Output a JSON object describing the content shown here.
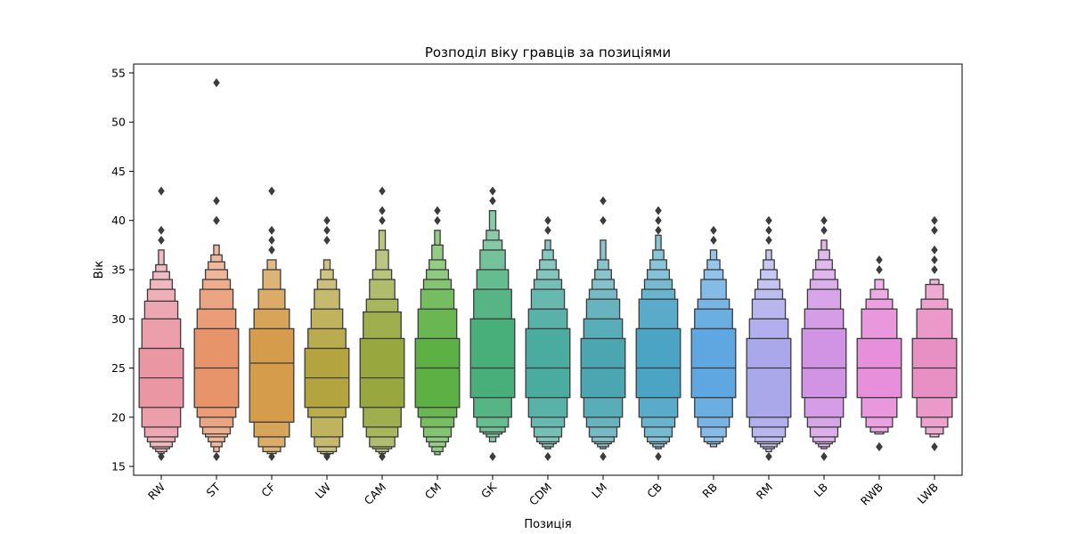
{
  "chart_data": {
    "type": "boxen",
    "title": "Розподіл віку гравців за позиціями",
    "xlabel": "Позиція",
    "ylabel": "Вік",
    "ylim": [
      14.1,
      55.9
    ],
    "yticks": [
      15,
      20,
      25,
      30,
      35,
      40,
      45,
      50,
      55
    ],
    "grid": false,
    "categories": [
      "RW",
      "ST",
      "CF",
      "LW",
      "CAM",
      "CM",
      "GK",
      "CDM",
      "LM",
      "CB",
      "RB",
      "RM",
      "LB",
      "RWB",
      "LWB"
    ],
    "colors": [
      "#ea96a3",
      "#e8946a",
      "#d49c4b",
      "#b3a43f",
      "#98a83e",
      "#5cb044",
      "#48af7a",
      "#4aab9f",
      "#4ba6b2",
      "#4ba4c4",
      "#5ea7e0",
      "#aaa8eb",
      "#d194e4",
      "#e78fdb",
      "#e890c4"
    ],
    "series": [
      {
        "median": 24,
        "boxes": [
          [
            21,
            27
          ],
          [
            19,
            30
          ],
          [
            18,
            31.8
          ],
          [
            17.5,
            33
          ],
          [
            17,
            34
          ],
          [
            16.8,
            34.8
          ],
          [
            16.5,
            35.5
          ],
          [
            16.3,
            37
          ]
        ],
        "outliers": [
          16,
          38,
          39,
          43
        ]
      },
      {
        "median": 25,
        "boxes": [
          [
            21,
            29
          ],
          [
            20,
            31
          ],
          [
            19,
            33
          ],
          [
            18.3,
            34
          ],
          [
            18,
            35
          ],
          [
            17.5,
            35.8
          ],
          [
            17,
            36.5
          ],
          [
            16.5,
            37.5
          ]
        ],
        "outliers": [
          16,
          16,
          40,
          40,
          42,
          54
        ]
      },
      {
        "median": 25.5,
        "boxes": [
          [
            19.5,
            29
          ],
          [
            18,
            31
          ],
          [
            17,
            33
          ],
          [
            16.5,
            35
          ],
          [
            16.3,
            36
          ]
        ],
        "outliers": [
          16,
          37,
          38,
          39,
          43
        ]
      },
      {
        "median": 24,
        "boxes": [
          [
            21,
            27
          ],
          [
            20,
            29
          ],
          [
            18,
            31
          ],
          [
            17,
            33
          ],
          [
            16.5,
            34
          ],
          [
            16.3,
            35
          ],
          [
            16.2,
            36
          ]
        ],
        "outliers": [
          16,
          38,
          39,
          40
        ]
      },
      {
        "median": 24,
        "boxes": [
          [
            21,
            28
          ],
          [
            19,
            30.7
          ],
          [
            18,
            32
          ],
          [
            17,
            34
          ],
          [
            16.8,
            35
          ],
          [
            16.5,
            37
          ],
          [
            16.3,
            39
          ]
        ],
        "outliers": [
          16,
          16,
          40,
          41,
          43
        ]
      },
      {
        "median": 25,
        "boxes": [
          [
            21,
            28
          ],
          [
            20,
            31
          ],
          [
            19,
            33
          ],
          [
            18,
            34
          ],
          [
            17.5,
            35
          ],
          [
            17,
            36
          ],
          [
            16.5,
            37.5
          ],
          [
            16.2,
            39
          ]
        ],
        "outliers": [
          40,
          41
        ]
      },
      {
        "median": 25,
        "boxes": [
          [
            22,
            30
          ],
          [
            20,
            33
          ],
          [
            19,
            35
          ],
          [
            18.5,
            37
          ],
          [
            18.3,
            38
          ],
          [
            18,
            39
          ],
          [
            17.5,
            41
          ]
        ],
        "outliers": [
          16,
          42,
          43
        ]
      },
      {
        "median": 25,
        "boxes": [
          [
            22,
            29
          ],
          [
            20,
            31
          ],
          [
            19,
            33
          ],
          [
            18,
            34
          ],
          [
            17.5,
            35
          ],
          [
            17.3,
            36
          ],
          [
            17,
            37
          ],
          [
            16.8,
            38
          ]
        ],
        "outliers": [
          16,
          39,
          40
        ]
      },
      {
        "median": 25,
        "boxes": [
          [
            22,
            28
          ],
          [
            20,
            30
          ],
          [
            19,
            32
          ],
          [
            18,
            33
          ],
          [
            17.5,
            34
          ],
          [
            17.3,
            35
          ],
          [
            17,
            36
          ],
          [
            16.8,
            38
          ]
        ],
        "outliers": [
          16,
          40,
          42
        ]
      },
      {
        "median": 25,
        "boxes": [
          [
            22,
            29
          ],
          [
            20,
            32
          ],
          [
            19,
            33
          ],
          [
            18,
            34
          ],
          [
            17.5,
            35
          ],
          [
            17.3,
            36
          ],
          [
            17,
            37
          ],
          [
            16.8,
            38.5
          ]
        ],
        "outliers": [
          16,
          39,
          40,
          41
        ]
      },
      {
        "median": 25,
        "boxes": [
          [
            22,
            29
          ],
          [
            20,
            31
          ],
          [
            19,
            32
          ],
          [
            18,
            34
          ],
          [
            17.5,
            35
          ],
          [
            17.3,
            36
          ],
          [
            17,
            37
          ]
        ],
        "outliers": [
          38,
          39
        ]
      },
      {
        "median": 25,
        "boxes": [
          [
            20,
            28
          ],
          [
            19,
            30
          ],
          [
            18,
            32
          ],
          [
            17.5,
            33
          ],
          [
            17.3,
            34
          ],
          [
            17,
            35
          ],
          [
            16.8,
            36
          ],
          [
            16.5,
            37
          ]
        ],
        "outliers": [
          16,
          38,
          39,
          40
        ]
      },
      {
        "median": 25,
        "boxes": [
          [
            22,
            29
          ],
          [
            20,
            31
          ],
          [
            19,
            33
          ],
          [
            18,
            34
          ],
          [
            17.5,
            35
          ],
          [
            17.3,
            36
          ],
          [
            17,
            37
          ],
          [
            16.8,
            38
          ]
        ],
        "outliers": [
          16,
          39,
          40
        ]
      },
      {
        "median": 25,
        "boxes": [
          [
            22,
            28
          ],
          [
            20,
            31
          ],
          [
            19,
            32
          ],
          [
            18.5,
            33
          ],
          [
            18.3,
            34
          ]
        ],
        "outliers": [
          17,
          17,
          35,
          36
        ]
      },
      {
        "median": 25,
        "boxes": [
          [
            22,
            28
          ],
          [
            20,
            31
          ],
          [
            19,
            32
          ],
          [
            18.3,
            33.5
          ],
          [
            18,
            34
          ]
        ],
        "outliers": [
          17,
          35,
          36,
          37,
          39,
          40
        ]
      }
    ]
  }
}
